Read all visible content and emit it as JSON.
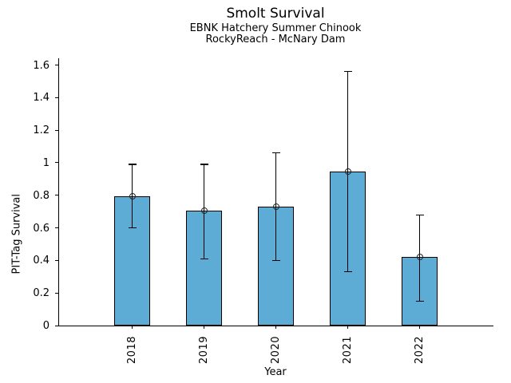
{
  "chart_data": {
    "type": "bar",
    "title": "Smolt Survival",
    "subtitle1": "EBNK Hatchery Summer Chinook",
    "subtitle2": "RockyReach - McNary Dam",
    "xlabel": "Year",
    "ylabel": "PIT-Tag Survival",
    "categories": [
      "2018",
      "2019",
      "2020",
      "2021",
      "2022"
    ],
    "values": [
      0.795,
      0.705,
      0.73,
      0.945,
      0.42
    ],
    "error_low": [
      0.6,
      0.41,
      0.4,
      0.33,
      0.15
    ],
    "error_high": [
      0.99,
      0.99,
      1.06,
      1.56,
      0.68
    ],
    "ylim": [
      0,
      1.642
    ],
    "yticks": [
      0,
      0.2,
      0.4,
      0.6,
      0.8,
      1.0,
      1.2,
      1.4,
      1.6
    ],
    "ytick_labels": [
      "0",
      "0.2",
      "0.4",
      "0.6",
      "0.8",
      "1",
      "1.2",
      "1.4",
      "1.6"
    ],
    "bar_color": "#5DACD5",
    "bar_edge_color": "#000000",
    "error_color": "#000000",
    "marker_style": "open-circle",
    "x_tick_rotation": 90,
    "grid": false,
    "legend": "none"
  }
}
